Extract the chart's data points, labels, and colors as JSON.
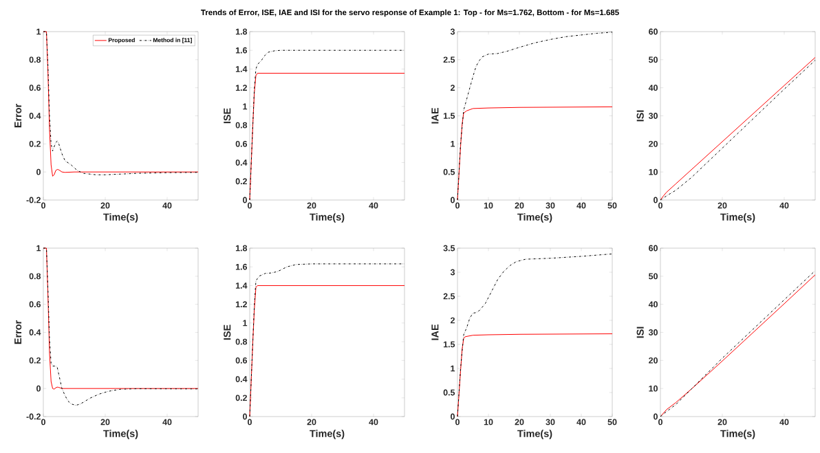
{
  "chart_data": [
    {
      "type": "line",
      "title": "Trends of Error, ISE, IAE and ISI for the servo response of Example 1: Top - for Ms=1.762,  Bottom - for Ms=1.685",
      "xlabel": "Time(s)",
      "ylabel": "Error",
      "xlim": [
        0,
        50
      ],
      "ylim": [
        -0.2,
        1
      ],
      "xticks": [
        0,
        20,
        40
      ],
      "yticks": [
        -0.2,
        0,
        0.2,
        0.4,
        0.6,
        0.8,
        1
      ],
      "legend": "top right",
      "series": [
        {
          "name": "Proposed",
          "color": "#ff0000",
          "line_style": "solid",
          "x": [
            0,
            1,
            1.5,
            2,
            2.5,
            3,
            3.5,
            4,
            4.5,
            5,
            6,
            7,
            10,
            50
          ],
          "values": [
            1,
            1,
            0.7,
            0.3,
            0.05,
            -0.03,
            -0.02,
            0.01,
            0.018,
            0.015,
            0,
            -0.003,
            0,
            0
          ]
        },
        {
          "name": "Method in [11]",
          "color": "#000000",
          "line_style": "dashdot",
          "x": [
            0,
            1,
            1.5,
            2,
            2.5,
            3,
            3.5,
            4,
            4.5,
            5,
            6,
            7,
            9,
            11,
            13,
            17,
            20,
            30,
            40,
            50
          ],
          "values": [
            1,
            1,
            0.75,
            0.4,
            0.2,
            0.15,
            0.18,
            0.21,
            0.22,
            0.2,
            0.13,
            0.08,
            0.05,
            0.01,
            -0.01,
            -0.02,
            -0.02,
            -0.01,
            -0.005,
            -0.003
          ]
        }
      ]
    },
    {
      "type": "line",
      "xlabel": "Time(s)",
      "ylabel": "ISE",
      "xlim": [
        0,
        50
      ],
      "ylim": [
        0,
        1.8
      ],
      "xticks": [
        0,
        20,
        40
      ],
      "yticks": [
        0,
        0.2,
        0.4,
        0.6,
        0.8,
        1,
        1.2,
        1.4,
        1.6,
        1.8
      ],
      "series": [
        {
          "color": "#ff0000",
          "line_style": "solid",
          "x": [
            0,
            0.5,
            1,
            1.5,
            2,
            2.5,
            3,
            50
          ],
          "values": [
            0,
            0.4,
            0.8,
            1.15,
            1.33,
            1.355,
            1.355,
            1.355
          ]
        },
        {
          "color": "#000000",
          "line_style": "dashdot",
          "x": [
            0,
            0.5,
            1,
            1.5,
            2,
            2.5,
            3.5,
            5,
            6,
            8,
            10,
            50
          ],
          "values": [
            0,
            0.4,
            0.8,
            1.2,
            1.4,
            1.45,
            1.48,
            1.55,
            1.58,
            1.595,
            1.6,
            1.6
          ]
        }
      ]
    },
    {
      "type": "line",
      "xlabel": "Time(s)",
      "ylabel": "IAE",
      "xlim": [
        0,
        50
      ],
      "ylim": [
        0,
        3
      ],
      "xticks": [
        0,
        10,
        20,
        30,
        40,
        50
      ],
      "yticks": [
        0,
        0.5,
        1,
        1.5,
        2,
        2.5,
        3
      ],
      "series": [
        {
          "color": "#ff0000",
          "line_style": "solid",
          "x": [
            0,
            1,
            1.5,
            2,
            3,
            5,
            10,
            20,
            50
          ],
          "values": [
            0,
            0.95,
            1.35,
            1.55,
            1.59,
            1.63,
            1.64,
            1.65,
            1.66
          ]
        },
        {
          "color": "#000000",
          "line_style": "dashdot",
          "x": [
            0,
            1,
            2,
            3,
            4,
            5,
            6,
            7,
            8,
            10,
            13,
            16,
            20,
            25,
            30,
            35,
            40,
            45,
            50
          ],
          "values": [
            0,
            1,
            1.6,
            1.8,
            2.0,
            2.2,
            2.38,
            2.48,
            2.55,
            2.6,
            2.61,
            2.65,
            2.72,
            2.8,
            2.86,
            2.91,
            2.94,
            2.97,
            2.99
          ]
        }
      ]
    },
    {
      "type": "line",
      "xlabel": "Time(s)",
      "ylabel": "ISI",
      "xlim": [
        0,
        50
      ],
      "ylim": [
        0,
        60
      ],
      "xticks": [
        0,
        20,
        40
      ],
      "yticks": [
        0,
        10,
        20,
        30,
        40,
        50,
        60
      ],
      "series": [
        {
          "color": "#ff0000",
          "line_style": "solid",
          "x": [
            0,
            1,
            2,
            5,
            10,
            20,
            30,
            40,
            50
          ],
          "values": [
            0,
            1.5,
            2.8,
            5.8,
            10.8,
            20.8,
            30.8,
            40.8,
            50.8
          ]
        },
        {
          "color": "#000000",
          "line_style": "dashdot",
          "x": [
            0,
            2,
            5,
            10,
            20,
            30,
            40,
            50
          ],
          "values": [
            0,
            1.5,
            3.5,
            8,
            18.5,
            29,
            39.5,
            49.8
          ]
        }
      ]
    },
    {
      "type": "line",
      "xlabel": "Time(s)",
      "ylabel": "Error",
      "xlim": [
        0,
        50
      ],
      "ylim": [
        -0.2,
        1
      ],
      "xticks": [
        0,
        20,
        40
      ],
      "yticks": [
        -0.2,
        0,
        0.2,
        0.4,
        0.6,
        0.8,
        1
      ],
      "series": [
        {
          "color": "#ff0000",
          "line_style": "solid",
          "x": [
            0,
            1,
            1.5,
            2,
            2.5,
            3,
            3.5,
            4,
            4.5,
            5,
            6,
            50
          ],
          "values": [
            1,
            1,
            0.65,
            0.25,
            0.05,
            0,
            -0.005,
            0.005,
            0.01,
            0.008,
            0,
            0
          ]
        },
        {
          "color": "#000000",
          "line_style": "dashdot",
          "x": [
            0,
            1,
            1.5,
            2,
            2.5,
            3,
            4,
            4.5,
            5,
            5.5,
            6,
            7,
            8,
            9,
            10.5,
            12,
            15,
            18,
            21,
            25,
            30,
            50
          ],
          "values": [
            1,
            1,
            0.7,
            0.35,
            0.18,
            0.16,
            0.16,
            0.15,
            0.1,
            0.05,
            0,
            -0.05,
            -0.09,
            -0.11,
            -0.12,
            -0.11,
            -0.07,
            -0.04,
            -0.02,
            -0.005,
            -0.002,
            -0.003
          ]
        }
      ]
    },
    {
      "type": "line",
      "xlabel": "Time(s)",
      "ylabel": "ISE",
      "xlim": [
        0,
        50
      ],
      "ylim": [
        0,
        1.8
      ],
      "xticks": [
        0,
        20,
        40
      ],
      "yticks": [
        0,
        0.2,
        0.4,
        0.6,
        0.8,
        1,
        1.2,
        1.4,
        1.6,
        1.8
      ],
      "series": [
        {
          "color": "#ff0000",
          "line_style": "solid",
          "x": [
            0,
            0.5,
            1,
            1.5,
            2,
            2.5,
            50
          ],
          "values": [
            0,
            0.4,
            0.8,
            1.15,
            1.38,
            1.4,
            1.4
          ]
        },
        {
          "color": "#000000",
          "line_style": "dashdot",
          "x": [
            0,
            1,
            1.5,
            2,
            3,
            5,
            7,
            9,
            12,
            15,
            20,
            50
          ],
          "values": [
            0,
            0.8,
            1.2,
            1.45,
            1.5,
            1.53,
            1.535,
            1.55,
            1.6,
            1.625,
            1.632,
            1.632
          ]
        }
      ]
    },
    {
      "type": "line",
      "xlabel": "Time(s)",
      "ylabel": "IAE",
      "xlim": [
        0,
        50
      ],
      "ylim": [
        0,
        3.5
      ],
      "xticks": [
        0,
        10,
        20,
        30,
        40,
        50
      ],
      "yticks": [
        0,
        0.5,
        1,
        1.5,
        2,
        2.5,
        3,
        3.5
      ],
      "series": [
        {
          "color": "#ff0000",
          "line_style": "solid",
          "x": [
            0,
            1,
            1.5,
            2,
            2.5,
            5,
            10,
            20,
            50
          ],
          "values": [
            0,
            0.95,
            1.4,
            1.62,
            1.66,
            1.69,
            1.7,
            1.71,
            1.72
          ]
        },
        {
          "color": "#000000",
          "line_style": "dashdot",
          "x": [
            0,
            1,
            2,
            3,
            4,
            5,
            6,
            7,
            9,
            11,
            13,
            15,
            17,
            19,
            22,
            30,
            40,
            50
          ],
          "values": [
            0,
            1,
            1.7,
            1.85,
            2.05,
            2.15,
            2.16,
            2.2,
            2.35,
            2.6,
            2.85,
            3.02,
            3.14,
            3.22,
            3.27,
            3.29,
            3.33,
            3.38
          ]
        }
      ]
    },
    {
      "type": "line",
      "xlabel": "Time(s)",
      "ylabel": "ISI",
      "xlim": [
        0,
        50
      ],
      "ylim": [
        0,
        60
      ],
      "xticks": [
        0,
        20,
        40
      ],
      "yticks": [
        0,
        10,
        20,
        30,
        40,
        50,
        60
      ],
      "series": [
        {
          "color": "#ff0000",
          "line_style": "solid",
          "x": [
            0,
            2,
            5,
            10,
            20,
            30,
            40,
            50
          ],
          "values": [
            0,
            2.5,
            5,
            9.8,
            19.8,
            30,
            40.2,
            50.5
          ]
        },
        {
          "color": "#000000",
          "line_style": "dashdot",
          "x": [
            0,
            2,
            5,
            10,
            20,
            30,
            40,
            50
          ],
          "values": [
            0,
            1.8,
            4.3,
            9.8,
            20.8,
            31.2,
            41.6,
            52
          ]
        }
      ]
    }
  ]
}
